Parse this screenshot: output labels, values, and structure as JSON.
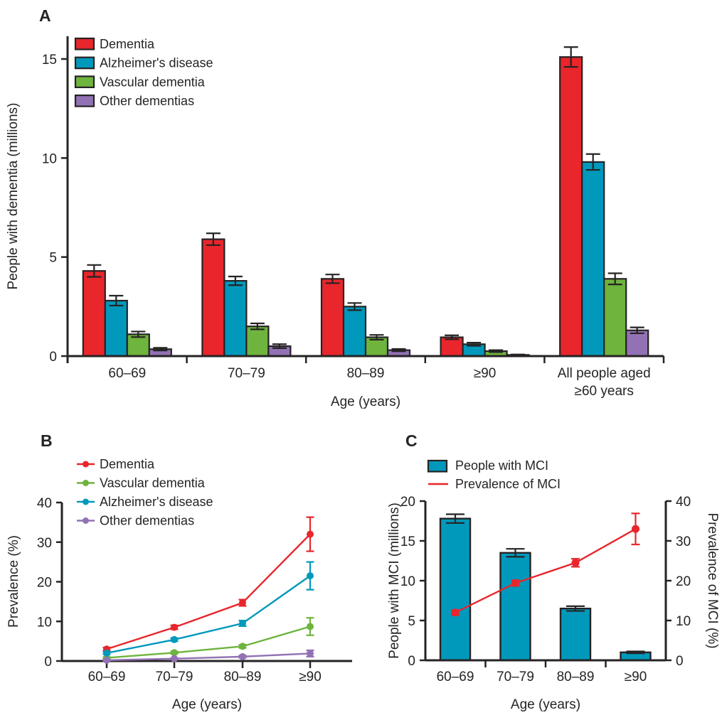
{
  "figure": {
    "background": "#FFFFFF"
  },
  "colors": {
    "red": "#E8262B",
    "blue": "#0099BC",
    "green": "#6EB43D",
    "purple": "#9272B4",
    "axis": "#262324",
    "text": "#262324"
  },
  "chart_data": [
    {
      "panel": "A",
      "panel_label": "A",
      "type": "bar",
      "xlabel": "Age (years)",
      "ylabel": "People with dementia (millions)",
      "ylim": [
        0,
        15
      ],
      "yticks": [
        0,
        5,
        10,
        15
      ],
      "categories": [
        "60–69",
        "70–79",
        "80–89",
        "≥90",
        "All people aged\n≥60 years"
      ],
      "legend_position": "top-left",
      "series": [
        {
          "name": "Dementia",
          "color": "#E8262B",
          "values": [
            4.3,
            5.9,
            3.9,
            0.95,
            15.1
          ],
          "errors": [
            0.3,
            0.3,
            0.22,
            0.1,
            0.5
          ]
        },
        {
          "name": "Alzheimer's disease",
          "color": "#0099BC",
          "values": [
            2.8,
            3.8,
            2.5,
            0.6,
            9.8
          ],
          "errors": [
            0.25,
            0.22,
            0.18,
            0.08,
            0.4
          ]
        },
        {
          "name": "Vascular dementia",
          "color": "#6EB43D",
          "values": [
            1.1,
            1.5,
            0.95,
            0.25,
            3.9
          ],
          "errors": [
            0.14,
            0.15,
            0.12,
            0.05,
            0.28
          ]
        },
        {
          "name": "Other dementias",
          "color": "#9272B4",
          "values": [
            0.35,
            0.5,
            0.3,
            0.06,
            1.3
          ],
          "errors": [
            0.07,
            0.1,
            0.06,
            0.02,
            0.15
          ]
        }
      ]
    },
    {
      "panel": "B",
      "panel_label": "B",
      "type": "line",
      "xlabel": "Age (years)",
      "ylabel": "Prevalence (%)",
      "ylim": [
        0,
        40
      ],
      "yticks": [
        0,
        10,
        20,
        30,
        40
      ],
      "categories": [
        "60–69",
        "70–79",
        "80–89",
        "≥90"
      ],
      "legend_position": "top-left",
      "series": [
        {
          "name": "Dementia",
          "color": "#E8262B",
          "values": [
            3.0,
            8.5,
            14.7,
            32.0
          ],
          "errors": [
            0.4,
            0.5,
            0.8,
            4.3
          ]
        },
        {
          "name": "Vascular dementia",
          "color": "#6EB43D",
          "values": [
            0.8,
            2.1,
            3.7,
            8.7
          ],
          "errors": [
            0.2,
            0.3,
            0.4,
            2.2
          ]
        },
        {
          "name": "Alzheimer's disease",
          "color": "#0099BC",
          "values": [
            2.0,
            5.4,
            9.5,
            21.5
          ],
          "errors": [
            0.3,
            0.4,
            0.7,
            3.5
          ]
        },
        {
          "name": "Other dementias",
          "color": "#9272B4",
          "values": [
            0.2,
            0.6,
            1.1,
            1.9
          ],
          "errors": [
            0.1,
            0.15,
            0.3,
            0.8
          ]
        }
      ]
    },
    {
      "panel": "C",
      "panel_label": "C",
      "type": "bar+line",
      "xlabel": "Age (years)",
      "categories": [
        "60–69",
        "70–79",
        "80–89",
        "≥90"
      ],
      "left_ylabel": "People with MCI (millions)",
      "left_ylim": [
        0,
        20
      ],
      "left_yticks": [
        0,
        5,
        10,
        15,
        20
      ],
      "right_ylabel": "Prevalence of MCI (%)",
      "right_ylim": [
        0,
        40
      ],
      "right_yticks": [
        0,
        10,
        20,
        30,
        40
      ],
      "bar_series": {
        "name": "People with MCI",
        "color": "#0099BC",
        "axis": "left",
        "values": [
          17.8,
          13.5,
          6.5,
          1.0
        ],
        "errors": [
          0.55,
          0.5,
          0.3,
          0.12
        ]
      },
      "line_series": {
        "name": "Prevalence of MCI",
        "color": "#E8262B",
        "axis": "right",
        "values": [
          12.0,
          19.4,
          24.5,
          33.0
        ],
        "errors": [
          0.6,
          0.7,
          1.0,
          3.9
        ]
      }
    }
  ]
}
